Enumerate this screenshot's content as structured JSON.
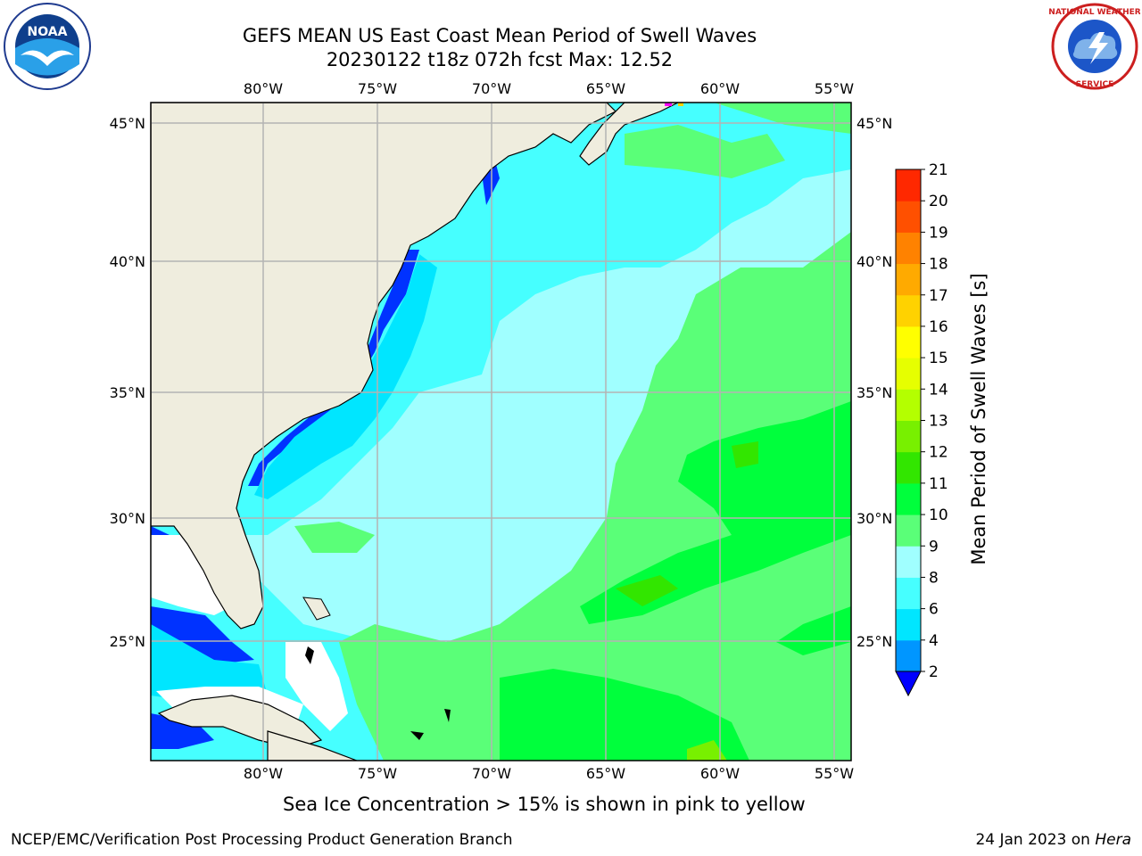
{
  "title_line1": "GEFS MEAN US East Coast Mean Period of Swell Waves",
  "title_line2": "20230122 t18z 072h fcst   Max: 12.52",
  "logos": {
    "noaa": {
      "icon": "noaa-logo",
      "text": "NOAA"
    },
    "nws": {
      "icon": "nws-logo",
      "text": "NATIONAL WEATHER SERVICE"
    }
  },
  "map": {
    "lon_labels": [
      "80°W",
      "75°W",
      "70°W",
      "65°W",
      "60°W",
      "55°W"
    ],
    "lat_labels": [
      "45°N",
      "40°N",
      "35°N",
      "30°N",
      "25°N"
    ],
    "land_color": "#efedde",
    "grid_color": "#b4b4b4"
  },
  "colorbar": {
    "label": "Mean Period of Swell Waves [s]",
    "ticks": [
      "2",
      "4",
      "6",
      "8",
      "9",
      "10",
      "11",
      "12",
      "13",
      "14",
      "15",
      "16",
      "17",
      "18",
      "19",
      "20",
      "21"
    ],
    "colors": [
      "#0032ff",
      "#0096ff",
      "#00e6ff",
      "#46ffff",
      "#a0ffff",
      "#5aff78",
      "#00ff3c",
      "#32e600",
      "#78f000",
      "#b4ff00",
      "#e6ff00",
      "#ffff00",
      "#ffd200",
      "#ffaa00",
      "#ff8200",
      "#ff5000",
      "#ff2800",
      "#ff0000"
    ],
    "under_color": "#0000ff"
  },
  "ice_note": "Sea Ice Concentration > 15% is shown in pink to yellow",
  "footer": {
    "left": "NCEP/EMC/Verification Post Processing Product Generation Branch",
    "right_date": "24 Jan 2023 on ",
    "right_host": "Hera"
  }
}
